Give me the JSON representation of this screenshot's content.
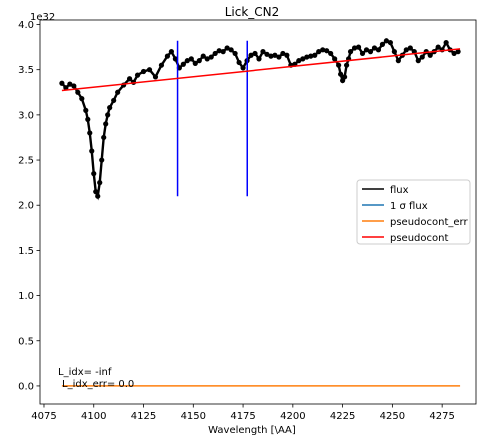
{
  "chart_data": {
    "type": "line",
    "title": "Lick_CN2",
    "xlabel": "Wavelength [\\AA]",
    "ylabel": "",
    "y_offset_text": "1e32",
    "xlim": [
      4073,
      4292
    ],
    "ylim": [
      -0.2,
      4.05
    ],
    "xticks": [
      4075,
      4100,
      4125,
      4150,
      4175,
      4200,
      4225,
      4250,
      4275
    ],
    "yticks": [
      0.0,
      0.5,
      1.0,
      1.5,
      2.0,
      2.5,
      3.0,
      3.5,
      4.0
    ],
    "tick_labels": {
      "x": [
        "4075",
        "4100",
        "4125",
        "4150",
        "4175",
        "4200",
        "4225",
        "4250",
        "4275"
      ],
      "y": [
        "0.0",
        "0.5",
        "1.0",
        "1.5",
        "2.0",
        "2.5",
        "3.0",
        "3.5",
        "4.0"
      ]
    },
    "grid": false,
    "legend": {
      "position": "right",
      "entries": [
        {
          "label": "flux",
          "color": "#000000"
        },
        {
          "label": "1 σ flux",
          "color": "#1f77b4"
        },
        {
          "label": "pseudocont_err",
          "color": "#ff7f0e"
        },
        {
          "label": "pseudocont",
          "color": "#ff0000"
        }
      ]
    },
    "annotations": [
      "L_idx= -inf",
      "L_idx_err= 0.0"
    ],
    "series": [
      {
        "name": "flux",
        "color": "#000000",
        "marker": "o",
        "x": [
          4084,
          4086,
          4088,
          4090,
          4092,
          4094,
          4096,
          4097,
          4098,
          4099,
          4100,
          4101,
          4102,
          4103,
          4104,
          4105,
          4106,
          4107,
          4108,
          4110,
          4112,
          4115,
          4118,
          4120,
          4122,
          4125,
          4128,
          4131,
          4134,
          4137,
          4139,
          4141,
          4143,
          4145,
          4147,
          4149,
          4151,
          4153,
          4155,
          4157,
          4159,
          4161,
          4163,
          4165,
          4167,
          4169,
          4171,
          4173,
          4175,
          4177,
          4179,
          4181,
          4183,
          4185,
          4187,
          4189,
          4191,
          4193,
          4195,
          4197,
          4199,
          4201,
          4203,
          4205,
          4207,
          4209,
          4211,
          4213,
          4215,
          4217,
          4219,
          4221,
          4223,
          4224,
          4225,
          4226,
          4227,
          4228,
          4229,
          4231,
          4233,
          4235,
          4237,
          4239,
          4241,
          4243,
          4245,
          4247,
          4249,
          4251,
          4253,
          4255,
          4257,
          4259,
          4261,
          4263,
          4265,
          4267,
          4269,
          4271,
          4273,
          4275,
          4277,
          4279,
          4281,
          4283
        ],
        "y": [
          3.35,
          3.3,
          3.34,
          3.32,
          3.25,
          3.18,
          3.05,
          2.95,
          2.8,
          2.6,
          2.35,
          2.15,
          2.1,
          2.25,
          2.5,
          2.75,
          2.9,
          3.0,
          3.08,
          3.16,
          3.25,
          3.33,
          3.4,
          3.36,
          3.44,
          3.48,
          3.5,
          3.42,
          3.55,
          3.65,
          3.7,
          3.62,
          3.52,
          3.56,
          3.6,
          3.62,
          3.57,
          3.6,
          3.65,
          3.62,
          3.64,
          3.68,
          3.71,
          3.7,
          3.74,
          3.72,
          3.68,
          3.58,
          3.52,
          3.6,
          3.66,
          3.68,
          3.62,
          3.7,
          3.67,
          3.65,
          3.66,
          3.64,
          3.68,
          3.66,
          3.55,
          3.56,
          3.6,
          3.62,
          3.64,
          3.65,
          3.66,
          3.7,
          3.72,
          3.71,
          3.68,
          3.62,
          3.55,
          3.45,
          3.38,
          3.42,
          3.55,
          3.62,
          3.7,
          3.74,
          3.75,
          3.68,
          3.72,
          3.7,
          3.74,
          3.72,
          3.78,
          3.82,
          3.8,
          3.7,
          3.6,
          3.66,
          3.72,
          3.74,
          3.7,
          3.6,
          3.64,
          3.7,
          3.66,
          3.7,
          3.75,
          3.72,
          3.8,
          3.72,
          3.68,
          3.7
        ]
      },
      {
        "name": "pseudocont",
        "color": "#ff0000",
        "x": [
          4084,
          4284
        ],
        "y": [
          3.27,
          3.73
        ]
      },
      {
        "name": "pseudocont_err",
        "color": "#ff7f0e",
        "x": [
          4084,
          4284
        ],
        "y": [
          0.0,
          0.0
        ]
      }
    ],
    "vlines": [
      {
        "x": 4142.1,
        "ymin": 2.1,
        "ymax": 3.82,
        "color": "#0000ff"
      },
      {
        "x": 4177.1,
        "ymin": 2.1,
        "ymax": 3.82,
        "color": "#0000ff"
      }
    ]
  }
}
